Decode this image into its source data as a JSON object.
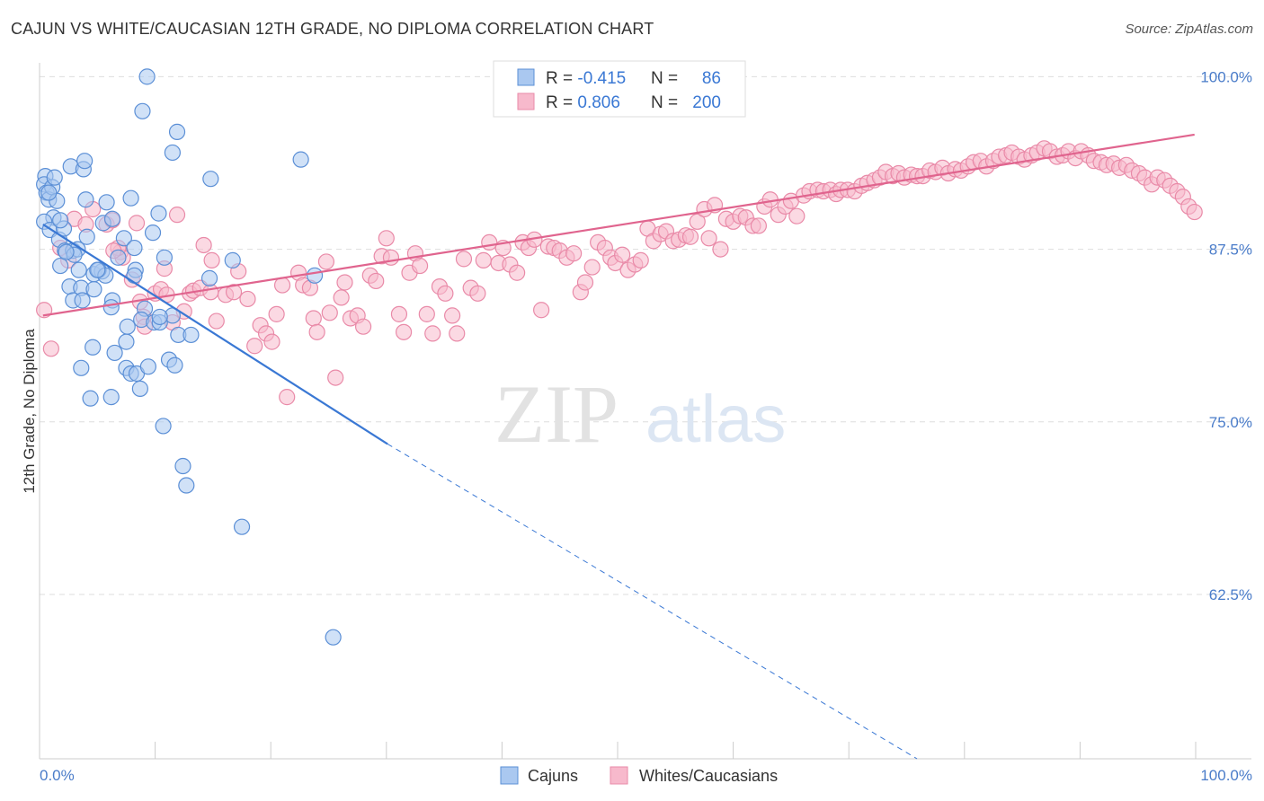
{
  "title": "CAJUN VS WHITE/CAUCASIAN 12TH GRADE, NO DIPLOMA CORRELATION CHART",
  "source": "Source: ZipAtlas.com",
  "watermark": {
    "zip": "ZIP",
    "atlas": "atlas"
  },
  "colors": {
    "cajun_fill": "#aac8f0",
    "cajun_stroke": "#5b8fd6",
    "cajun_line": "#3a78d4",
    "white_fill": "#f7b9cc",
    "white_stroke": "#e98aa8",
    "white_line": "#e0648e",
    "tick_text": "#4a7cc9",
    "grid": "#dddddd"
  },
  "legend_top": {
    "rows": [
      {
        "r_label": "R = ",
        "r_value": "-0.415",
        "n_label": "N = ",
        "n_value": "86"
      },
      {
        "r_label": "R = ",
        "r_value": "0.806",
        "n_label": "N = ",
        "n_value": "200"
      }
    ]
  },
  "legend_bottom": [
    "Cajuns",
    "Whites/Caucasians"
  ],
  "chart_data": {
    "type": "scatter",
    "title": "CAJUN VS WHITE/CAUCASIAN 12TH GRADE, NO DIPLOMA CORRELATION CHART",
    "xlabel": "",
    "ylabel": "12th Grade, No Diploma",
    "xlim": [
      0,
      100
    ],
    "ylim": [
      50.6,
      101.0
    ],
    "x_tick_labels": [
      {
        "value": 0,
        "label": "0.0%"
      },
      {
        "value": 100,
        "label": "100.0%"
      }
    ],
    "y_ticks": [
      {
        "value": 100,
        "label": "100.0%"
      },
      {
        "value": 87.5,
        "label": "87.5%"
      },
      {
        "value": 75,
        "label": "75.0%"
      },
      {
        "value": 62.5,
        "label": "62.5%"
      }
    ],
    "grid": true,
    "legend_position": "top-center",
    "series": [
      {
        "name": "Cajuns",
        "R": -0.415,
        "N": 86,
        "trendline": {
          "x": [
            0.3,
            30.1
          ],
          "y": [
            89.3,
            73.4
          ],
          "dashed_extension_to": [
            75.9,
            50.6
          ]
        },
        "points": [
          [
            0.5,
            92.8
          ],
          [
            0.4,
            92.2
          ],
          [
            0.6,
            91.6
          ],
          [
            0.8,
            91.1
          ],
          [
            1.1,
            92.0
          ],
          [
            1.2,
            89.8
          ],
          [
            0.4,
            89.5
          ],
          [
            0.9,
            88.9
          ],
          [
            1.3,
            92.7
          ],
          [
            1.5,
            91.0
          ],
          [
            2.7,
            93.5
          ],
          [
            3.8,
            93.3
          ],
          [
            3.9,
            93.9
          ],
          [
            4.0,
            91.1
          ],
          [
            5.8,
            90.9
          ],
          [
            7.9,
            91.2
          ],
          [
            9.3,
            100.0
          ],
          [
            8.9,
            97.5
          ],
          [
            11.9,
            96.0
          ],
          [
            11.5,
            94.5
          ],
          [
            10.3,
            90.1
          ],
          [
            14.8,
            92.6
          ],
          [
            22.6,
            94.0
          ],
          [
            1.7,
            88.2
          ],
          [
            2.2,
            87.4
          ],
          [
            2.9,
            87.4
          ],
          [
            3.3,
            87.5
          ],
          [
            4.1,
            88.4
          ],
          [
            5.5,
            89.4
          ],
          [
            6.3,
            89.7
          ],
          [
            7.3,
            88.3
          ],
          [
            8.2,
            87.6
          ],
          [
            9.8,
            88.7
          ],
          [
            1.8,
            86.3
          ],
          [
            3.4,
            86.0
          ],
          [
            4.7,
            85.7
          ],
          [
            5.4,
            85.9
          ],
          [
            5.1,
            86.0
          ],
          [
            5.7,
            85.6
          ],
          [
            8.3,
            86.0
          ],
          [
            10.8,
            86.9
          ],
          [
            14.7,
            85.4
          ],
          [
            16.7,
            86.7
          ],
          [
            23.8,
            85.6
          ],
          [
            2.6,
            84.8
          ],
          [
            3.6,
            84.7
          ],
          [
            4.7,
            84.6
          ],
          [
            2.9,
            83.8
          ],
          [
            3.7,
            83.8
          ],
          [
            6.3,
            83.8
          ],
          [
            6.2,
            83.3
          ],
          [
            9.1,
            83.2
          ],
          [
            11.5,
            82.7
          ],
          [
            8.8,
            82.4
          ],
          [
            9.9,
            82.2
          ],
          [
            10.4,
            82.2
          ],
          [
            7.6,
            81.9
          ],
          [
            12.0,
            81.3
          ],
          [
            13.1,
            81.3
          ],
          [
            4.6,
            80.4
          ],
          [
            6.5,
            80.0
          ],
          [
            7.5,
            80.8
          ],
          [
            11.2,
            79.5
          ],
          [
            11.7,
            79.1
          ],
          [
            3.6,
            78.9
          ],
          [
            7.5,
            78.9
          ],
          [
            7.9,
            78.5
          ],
          [
            8.4,
            78.5
          ],
          [
            9.4,
            79.0
          ],
          [
            8.7,
            77.4
          ],
          [
            4.4,
            76.7
          ],
          [
            6.2,
            76.8
          ],
          [
            10.7,
            74.7
          ],
          [
            12.4,
            71.8
          ],
          [
            12.7,
            70.4
          ],
          [
            17.5,
            67.4
          ],
          [
            25.4,
            59.4
          ],
          [
            2.1,
            89.0
          ],
          [
            3.0,
            87.1
          ],
          [
            0.8,
            91.6
          ],
          [
            1.8,
            89.6
          ],
          [
            2.3,
            87.3
          ],
          [
            5.0,
            86.0
          ],
          [
            6.8,
            86.9
          ],
          [
            8.2,
            85.6
          ],
          [
            10.4,
            82.6
          ]
        ]
      },
      {
        "name": "Whites/Caucasians",
        "R": 0.806,
        "N": 200,
        "trendline": {
          "x": [
            0.3,
            99.9
          ],
          "y": [
            82.7,
            95.8
          ]
        },
        "points": [
          [
            0.4,
            83.1
          ],
          [
            1.0,
            80.3
          ],
          [
            1.8,
            87.6
          ],
          [
            2.5,
            86.7
          ],
          [
            3.0,
            89.7
          ],
          [
            4.0,
            89.3
          ],
          [
            4.6,
            90.4
          ],
          [
            5.8,
            89.3
          ],
          [
            6.3,
            89.6
          ],
          [
            7.0,
            87.3
          ],
          [
            7.2,
            86.9
          ],
          [
            6.8,
            87.6
          ],
          [
            6.4,
            87.4
          ],
          [
            8.0,
            85.3
          ],
          [
            8.4,
            89.4
          ],
          [
            8.7,
            83.7
          ],
          [
            9.0,
            82.6
          ],
          [
            9.1,
            81.9
          ],
          [
            10.0,
            84.3
          ],
          [
            10.5,
            84.6
          ],
          [
            11.0,
            84.2
          ],
          [
            10.8,
            86.1
          ],
          [
            11.9,
            90.0
          ],
          [
            11.5,
            82.2
          ],
          [
            12.5,
            83.0
          ],
          [
            13.0,
            84.3
          ],
          [
            13.3,
            84.5
          ],
          [
            13.9,
            84.7
          ],
          [
            14.2,
            87.8
          ],
          [
            14.8,
            84.4
          ],
          [
            14.9,
            86.7
          ],
          [
            15.3,
            82.3
          ],
          [
            16.1,
            84.2
          ],
          [
            16.8,
            84.4
          ],
          [
            17.2,
            85.9
          ],
          [
            18.0,
            83.9
          ],
          [
            18.6,
            80.5
          ],
          [
            19.1,
            82.0
          ],
          [
            19.6,
            81.4
          ],
          [
            20.1,
            80.8
          ],
          [
            20.5,
            82.8
          ],
          [
            21.0,
            84.9
          ],
          [
            21.4,
            76.8
          ],
          [
            22.4,
            85.8
          ],
          [
            22.8,
            84.9
          ],
          [
            23.4,
            84.7
          ],
          [
            23.7,
            82.5
          ],
          [
            24.0,
            81.5
          ],
          [
            24.8,
            86.6
          ],
          [
            25.1,
            82.9
          ],
          [
            25.6,
            78.2
          ],
          [
            26.1,
            84.0
          ],
          [
            26.4,
            85.1
          ],
          [
            26.9,
            82.5
          ],
          [
            27.5,
            82.7
          ],
          [
            28.0,
            81.9
          ],
          [
            28.6,
            85.6
          ],
          [
            29.1,
            85.2
          ],
          [
            29.6,
            87.0
          ],
          [
            30.0,
            88.3
          ],
          [
            30.4,
            86.9
          ],
          [
            31.1,
            82.8
          ],
          [
            31.5,
            81.5
          ],
          [
            32.0,
            85.8
          ],
          [
            32.5,
            87.2
          ],
          [
            32.9,
            86.3
          ],
          [
            33.5,
            82.8
          ],
          [
            34.0,
            81.4
          ],
          [
            34.6,
            84.8
          ],
          [
            35.1,
            84.3
          ],
          [
            35.7,
            82.7
          ],
          [
            36.1,
            81.4
          ],
          [
            36.7,
            86.8
          ],
          [
            37.3,
            84.7
          ],
          [
            37.9,
            84.3
          ],
          [
            38.4,
            86.7
          ],
          [
            38.9,
            88.0
          ],
          [
            39.7,
            86.5
          ],
          [
            40.1,
            87.6
          ],
          [
            40.7,
            86.4
          ],
          [
            41.3,
            85.8
          ],
          [
            41.8,
            88.0
          ],
          [
            42.3,
            87.6
          ],
          [
            42.8,
            88.2
          ],
          [
            43.4,
            83.1
          ],
          [
            44.0,
            87.7
          ],
          [
            44.5,
            87.6
          ],
          [
            45.0,
            87.4
          ],
          [
            45.6,
            86.9
          ],
          [
            46.2,
            87.2
          ],
          [
            46.8,
            84.4
          ],
          [
            47.2,
            85.1
          ],
          [
            47.8,
            86.2
          ],
          [
            48.3,
            88.0
          ],
          [
            48.9,
            87.6
          ],
          [
            49.4,
            86.9
          ],
          [
            49.8,
            86.5
          ],
          [
            50.4,
            87.1
          ],
          [
            50.9,
            86.0
          ],
          [
            51.5,
            86.4
          ],
          [
            52.0,
            86.7
          ],
          [
            52.6,
            89.0
          ],
          [
            53.1,
            88.1
          ],
          [
            53.7,
            88.6
          ],
          [
            54.2,
            88.8
          ],
          [
            54.8,
            88.1
          ],
          [
            55.3,
            88.2
          ],
          [
            55.9,
            88.5
          ],
          [
            56.3,
            88.4
          ],
          [
            56.9,
            89.5
          ],
          [
            57.5,
            90.4
          ],
          [
            57.9,
            88.3
          ],
          [
            58.4,
            90.7
          ],
          [
            58.9,
            87.5
          ],
          [
            59.4,
            89.7
          ],
          [
            60.0,
            89.5
          ],
          [
            60.6,
            89.9
          ],
          [
            61.1,
            89.8
          ],
          [
            61.7,
            89.2
          ],
          [
            62.2,
            89.2
          ],
          [
            62.7,
            90.6
          ],
          [
            63.2,
            91.1
          ],
          [
            63.9,
            90.0
          ],
          [
            64.5,
            90.6
          ],
          [
            65.0,
            91.0
          ],
          [
            65.5,
            89.9
          ],
          [
            66.1,
            91.4
          ],
          [
            66.6,
            91.7
          ],
          [
            67.3,
            91.8
          ],
          [
            67.8,
            91.7
          ],
          [
            68.4,
            91.8
          ],
          [
            68.9,
            91.5
          ],
          [
            69.3,
            91.8
          ],
          [
            69.9,
            91.8
          ],
          [
            70.5,
            91.7
          ],
          [
            71.1,
            92.1
          ],
          [
            71.6,
            92.3
          ],
          [
            72.2,
            92.5
          ],
          [
            72.7,
            92.7
          ],
          [
            73.2,
            93.1
          ],
          [
            73.8,
            92.8
          ],
          [
            74.3,
            93.0
          ],
          [
            74.8,
            92.7
          ],
          [
            75.4,
            92.9
          ],
          [
            75.9,
            92.8
          ],
          [
            76.4,
            92.8
          ],
          [
            77.0,
            93.2
          ],
          [
            77.5,
            93.1
          ],
          [
            78.1,
            93.4
          ],
          [
            78.6,
            93.0
          ],
          [
            79.2,
            93.3
          ],
          [
            79.7,
            93.2
          ],
          [
            80.3,
            93.5
          ],
          [
            80.8,
            93.8
          ],
          [
            81.4,
            93.9
          ],
          [
            81.9,
            93.5
          ],
          [
            82.5,
            93.9
          ],
          [
            83.0,
            94.2
          ],
          [
            83.6,
            94.3
          ],
          [
            84.1,
            94.5
          ],
          [
            84.7,
            94.2
          ],
          [
            85.2,
            94.0
          ],
          [
            85.8,
            94.3
          ],
          [
            86.3,
            94.5
          ],
          [
            86.9,
            94.8
          ],
          [
            87.4,
            94.6
          ],
          [
            88.0,
            94.2
          ],
          [
            88.5,
            94.3
          ],
          [
            89.0,
            94.6
          ],
          [
            89.6,
            94.1
          ],
          [
            90.1,
            94.6
          ],
          [
            90.7,
            94.3
          ],
          [
            91.2,
            93.9
          ],
          [
            91.8,
            93.8
          ],
          [
            92.3,
            93.6
          ],
          [
            92.9,
            93.7
          ],
          [
            93.4,
            93.4
          ],
          [
            94.0,
            93.6
          ],
          [
            94.5,
            93.2
          ],
          [
            95.1,
            93.0
          ],
          [
            95.6,
            92.7
          ],
          [
            96.2,
            92.2
          ],
          [
            96.7,
            92.7
          ],
          [
            97.3,
            92.5
          ],
          [
            97.8,
            92.1
          ],
          [
            98.4,
            91.7
          ],
          [
            98.9,
            91.3
          ],
          [
            99.4,
            90.6
          ],
          [
            99.9,
            90.2
          ]
        ]
      }
    ]
  }
}
